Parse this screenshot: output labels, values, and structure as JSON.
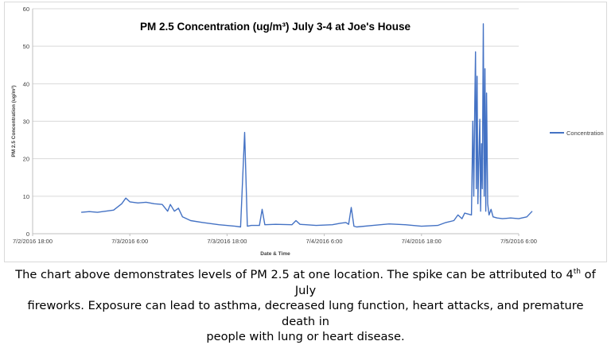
{
  "chart_data": {
    "type": "line",
    "title": "PM 2.5 Concentration (ug/m³) July 3-4 at Joe's House",
    "xlabel": "Date & Time",
    "ylabel": "PM 2.5 Concentration (ug/m³)",
    "ylim": [
      0,
      60
    ],
    "yticks": [
      "0",
      "10",
      "20",
      "30",
      "40",
      "50",
      "60"
    ],
    "xlim_hours_label": [
      "7/2/2016 18:00",
      "7/5/2016 6:00"
    ],
    "xticks": [
      "7/2/2016 18:00",
      "7/3/2016 6:00",
      "7/3/2016 18:00",
      "7/4/2016 6:00",
      "7/4/2016 18:00",
      "7/5/2016 6:00"
    ],
    "grid": true,
    "legend_position": "right",
    "series": [
      {
        "name": "Concentration",
        "color": "#4472c4",
        "points": [
          [
            "7/3/2016 0:00",
            5.7
          ],
          [
            "7/3/2016 1:00",
            5.9
          ],
          [
            "7/3/2016 2:00",
            5.7
          ],
          [
            "7/3/2016 3:00",
            6.0
          ],
          [
            "7/3/2016 4:00",
            6.3
          ],
          [
            "7/3/2016 5:00",
            8.0
          ],
          [
            "7/3/2016 5:30",
            9.5
          ],
          [
            "7/3/2016 6:00",
            8.5
          ],
          [
            "7/3/2016 7:00",
            8.2
          ],
          [
            "7/3/2016 8:00",
            8.4
          ],
          [
            "7/3/2016 9:00",
            8.0
          ],
          [
            "7/3/2016 10:00",
            7.8
          ],
          [
            "7/3/2016 10:40",
            6.0
          ],
          [
            "7/3/2016 11:00",
            7.8
          ],
          [
            "7/3/2016 11:30",
            6.0
          ],
          [
            "7/3/2016 12:00",
            6.8
          ],
          [
            "7/3/2016 12:30",
            4.5
          ],
          [
            "7/3/2016 13:30",
            3.5
          ],
          [
            "7/3/2016 15:00",
            3.0
          ],
          [
            "7/3/2016 17:00",
            2.4
          ],
          [
            "7/3/2016 19:00",
            2.0
          ],
          [
            "7/3/2016 19:40",
            1.8
          ],
          [
            "7/3/2016 20:10",
            27.0
          ],
          [
            "7/3/2016 20:30",
            2.0
          ],
          [
            "7/3/2016 21:00",
            2.2
          ],
          [
            "7/3/2016 22:00",
            2.2
          ],
          [
            "7/3/2016 22:20",
            6.5
          ],
          [
            "7/3/2016 22:40",
            2.4
          ],
          [
            "7/4/2016 0:00",
            2.5
          ],
          [
            "7/4/2016 2:00",
            2.4
          ],
          [
            "7/4/2016 2:30",
            3.5
          ],
          [
            "7/4/2016 3:00",
            2.5
          ],
          [
            "7/4/2016 5:00",
            2.2
          ],
          [
            "7/4/2016 7:00",
            2.4
          ],
          [
            "7/4/2016 8:00",
            2.8
          ],
          [
            "7/4/2016 8:40",
            3.0
          ],
          [
            "7/4/2016 9:00",
            2.5
          ],
          [
            "7/4/2016 9:20",
            7.0
          ],
          [
            "7/4/2016 9:40",
            2.0
          ],
          [
            "7/4/2016 10:00",
            1.8
          ],
          [
            "7/4/2016 12:00",
            2.2
          ],
          [
            "7/4/2016 14:00",
            2.6
          ],
          [
            "7/4/2016 16:00",
            2.4
          ],
          [
            "7/4/2016 18:00",
            2.0
          ],
          [
            "7/4/2016 20:00",
            2.2
          ],
          [
            "7/4/2016 21:00",
            3.0
          ],
          [
            "7/4/2016 22:00",
            3.5
          ],
          [
            "7/4/2016 22:30",
            5.0
          ],
          [
            "7/4/2016 23:00",
            4.0
          ],
          [
            "7/4/2016 23:20",
            5.5
          ],
          [
            "7/5/2016 0:10",
            5.0
          ],
          [
            "7/5/2016 0:20",
            30.0
          ],
          [
            "7/5/2016 0:27",
            10.0
          ],
          [
            "7/5/2016 0:35",
            35.0
          ],
          [
            "7/5/2016 0:40",
            48.5
          ],
          [
            "7/5/2016 0:46",
            12.0
          ],
          [
            "7/5/2016 0:52",
            42.0
          ],
          [
            "7/5/2016 0:58",
            8.0
          ],
          [
            "7/5/2016 1:05",
            20.0
          ],
          [
            "7/5/2016 1:12",
            30.5
          ],
          [
            "7/5/2016 1:18",
            6.0
          ],
          [
            "7/5/2016 1:24",
            24.0
          ],
          [
            "7/5/2016 1:30",
            12.0
          ],
          [
            "7/5/2016 1:38",
            56.0
          ],
          [
            "7/5/2016 1:44",
            10.0
          ],
          [
            "7/5/2016 1:50",
            44.0
          ],
          [
            "7/5/2016 1:56",
            6.0
          ],
          [
            "7/5/2016 2:02",
            37.5
          ],
          [
            "7/5/2016 2:10",
            8.0
          ],
          [
            "7/5/2016 2:20",
            5.0
          ],
          [
            "7/5/2016 2:35",
            6.5
          ],
          [
            "7/5/2016 2:50",
            4.5
          ],
          [
            "7/5/2016 3:20",
            4.2
          ],
          [
            "7/5/2016 4:00",
            4.0
          ],
          [
            "7/5/2016 5:00",
            4.2
          ],
          [
            "7/5/2016 6:00",
            4.0
          ],
          [
            "7/5/2016 7:00",
            4.5
          ],
          [
            "7/5/2016 7:40",
            6.0
          ]
        ]
      }
    ]
  },
  "caption": {
    "line1": "The chart above demonstrates levels of PM 2.5 at one location. The spike can be attributed to 4",
    "line1_sup": "th",
    "line1_end": " of July",
    "line2": "fireworks. Exposure can lead to asthma, decreased lung function, heart attacks, and premature death in",
    "line3": "people with lung or heart disease."
  }
}
